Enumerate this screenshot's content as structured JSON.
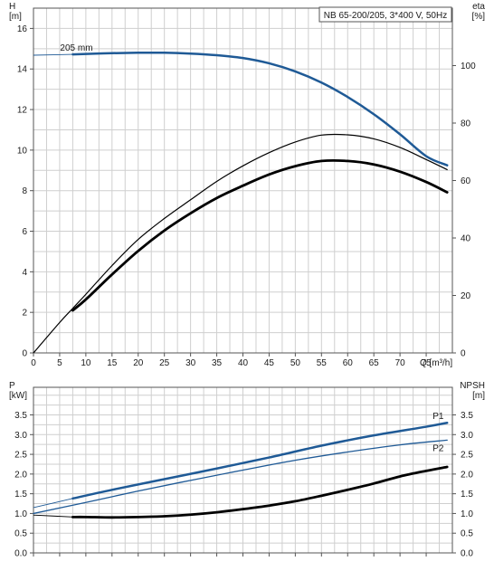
{
  "title": "NB 65-200/205, 3*400 V, 50Hz",
  "chart_data": [
    {
      "type": "line",
      "panel": "head-efficiency",
      "title": "NB 65-200/205, 3*400 V, 50Hz",
      "xlabel": "Q [m³/h]",
      "ylabel_left": [
        "H",
        "[m]"
      ],
      "ylabel_right": [
        "eta",
        "[%]"
      ],
      "xlim": [
        0,
        80
      ],
      "ylim_left": [
        0,
        17
      ],
      "ylim_right": [
        0,
        120
      ],
      "x_ticks": [
        "0",
        "5",
        "10",
        "15",
        "20",
        "25",
        "30",
        "35",
        "40",
        "45",
        "50",
        "55",
        "60",
        "65",
        "70",
        "75"
      ],
      "y_ticks_left": [
        "0",
        "2",
        "4",
        "6",
        "8",
        "10",
        "12",
        "14",
        "16"
      ],
      "y_ticks_right": [
        "0",
        "20",
        "40",
        "60",
        "80",
        "100"
      ],
      "grid": true,
      "series": [
        {
          "name": "205 mm",
          "axis": "left",
          "color": "#1f5a96",
          "width": 2.5,
          "points": [
            [
              7.5,
              14.72
            ],
            [
              10,
              14.74
            ],
            [
              15,
              14.78
            ],
            [
              20,
              14.8
            ],
            [
              25,
              14.8
            ],
            [
              30,
              14.76
            ],
            [
              35,
              14.68
            ],
            [
              40,
              14.54
            ],
            [
              45,
              14.28
            ],
            [
              50,
              13.88
            ],
            [
              55,
              13.33
            ],
            [
              60,
              12.62
            ],
            [
              65,
              11.77
            ],
            [
              70,
              10.78
            ],
            [
              75,
              9.7
            ],
            [
              79,
              9.25
            ]
          ],
          "dashed_start": [
            [
              0,
              14.68
            ],
            [
              7.5,
              14.72
            ]
          ]
        },
        {
          "name": "",
          "axis": "right",
          "color": "#000000",
          "width": 1.2,
          "points": [
            [
              0,
              0
            ],
            [
              5,
              10.6
            ],
            [
              7.5,
              15.5
            ],
            [
              10,
              20.4
            ],
            [
              15,
              30.4
            ],
            [
              20,
              39.5
            ],
            [
              25,
              46.8
            ],
            [
              30,
              53.3
            ],
            [
              35,
              59.7
            ],
            [
              40,
              65.1
            ],
            [
              45,
              69.7
            ],
            [
              50,
              73.4
            ],
            [
              55,
              75.8
            ],
            [
              60,
              75.9
            ],
            [
              65,
              74.5
            ],
            [
              70,
              71.5
            ],
            [
              75,
              67.3
            ],
            [
              79,
              63.8
            ]
          ]
        },
        {
          "name": "",
          "axis": "right",
          "color": "#000000",
          "width": 2.8,
          "points": [
            [
              7.5,
              14.8
            ],
            [
              10,
              18.6
            ],
            [
              15,
              27.3
            ],
            [
              20,
              35.5
            ],
            [
              25,
              42.6
            ],
            [
              30,
              48.6
            ],
            [
              35,
              53.9
            ],
            [
              40,
              58.2
            ],
            [
              45,
              62.1
            ],
            [
              50,
              65.0
            ],
            [
              55,
              66.8
            ],
            [
              60,
              66.8
            ],
            [
              65,
              65.6
            ],
            [
              70,
              63.1
            ],
            [
              75,
              59.5
            ],
            [
              79,
              55.9
            ]
          ]
        }
      ]
    },
    {
      "type": "line",
      "panel": "power-npsh",
      "xlabel": "",
      "ylabel_left": [
        "P",
        "[kW]"
      ],
      "ylabel_right": [
        "NPSH",
        "[m]"
      ],
      "xlim": [
        0,
        80
      ],
      "ylim_left": [
        0,
        4.2
      ],
      "ylim_right": [
        0,
        4.2
      ],
      "y_ticks_left": [
        "0.0",
        "0.5",
        "1.0",
        "1.5",
        "2.0",
        "2.5",
        "3.0",
        "3.5"
      ],
      "y_ticks_right": [
        "0.0",
        "0.5",
        "1.0",
        "1.5",
        "2.0",
        "2.5",
        "3.0",
        "3.5"
      ],
      "grid": true,
      "series": [
        {
          "name": "P1",
          "axis": "left",
          "color": "#1f5a96",
          "width": 2.5,
          "points": [
            [
              7.5,
              1.38
            ],
            [
              15,
              1.6
            ],
            [
              25,
              1.87
            ],
            [
              35,
              2.14
            ],
            [
              45,
              2.42
            ],
            [
              55,
              2.72
            ],
            [
              65,
              2.98
            ],
            [
              75,
              3.2
            ],
            [
              79,
              3.3
            ]
          ],
          "dashed_start": [
            [
              0,
              1.15
            ],
            [
              7.5,
              1.38
            ]
          ]
        },
        {
          "name": "P2",
          "axis": "left",
          "color": "#1f5a96",
          "width": 1.3,
          "points": [
            [
              0,
              1.0
            ],
            [
              10,
              1.28
            ],
            [
              20,
              1.57
            ],
            [
              30,
              1.84
            ],
            [
              40,
              2.1
            ],
            [
              50,
              2.35
            ],
            [
              60,
              2.56
            ],
            [
              70,
              2.74
            ],
            [
              79,
              2.86
            ]
          ]
        },
        {
          "name": "",
          "axis": "right",
          "color": "#000000",
          "width": 2.8,
          "points": [
            [
              7.5,
              0.91
            ],
            [
              10,
              0.91
            ],
            [
              15,
              0.9
            ],
            [
              20,
              0.91
            ],
            [
              25,
              0.93
            ],
            [
              30,
              0.97
            ],
            [
              35,
              1.03
            ],
            [
              40,
              1.11
            ],
            [
              45,
              1.2
            ],
            [
              50,
              1.31
            ],
            [
              55,
              1.45
            ],
            [
              60,
              1.6
            ],
            [
              65,
              1.76
            ],
            [
              70,
              1.94
            ],
            [
              75,
              2.08
            ],
            [
              79,
              2.18
            ]
          ],
          "dashed_start": [
            [
              0,
              0.96
            ],
            [
              7.5,
              0.91
            ]
          ]
        }
      ]
    }
  ]
}
